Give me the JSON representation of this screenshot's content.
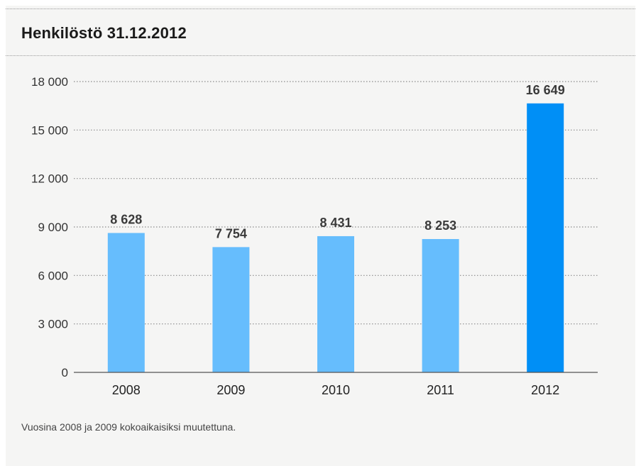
{
  "title": "Henkilöstö 31.12.2012",
  "footnote": "Vuosina 2008 ja 2009 kokoaikaisiksi muutettuna.",
  "colors": {
    "bar": "#66bdfd",
    "highlight": "#008ff6",
    "grid": "#8a8a8a",
    "axis": "#555555"
  },
  "chart_data": {
    "type": "bar",
    "title": "Henkilöstö 31.12.2012",
    "categories": [
      "2008",
      "2009",
      "2010",
      "2011",
      "2012"
    ],
    "values": [
      8628,
      7754,
      8431,
      8253,
      16649
    ],
    "value_labels": [
      "8 628",
      "7 754",
      "8 431",
      "8 253",
      "16 649"
    ],
    "highlight_index": 4,
    "ylim": [
      0,
      18000
    ],
    "yticks": [
      0,
      3000,
      6000,
      9000,
      12000,
      15000,
      18000
    ],
    "ytick_labels": [
      "0",
      "3 000",
      "6 000",
      "9 000",
      "12 000",
      "15 000",
      "18 000"
    ],
    "xlabel": "",
    "ylabel": "",
    "grid": true,
    "legend": "none"
  }
}
